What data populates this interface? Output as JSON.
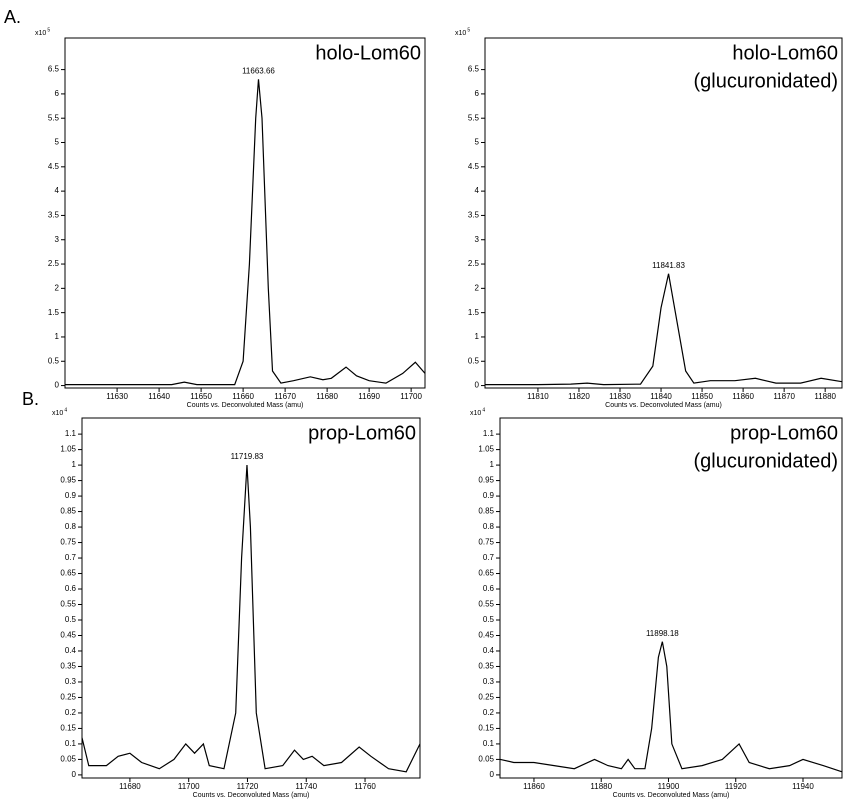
{
  "panel_labels": [
    "A.",
    "B."
  ],
  "chart_data": [
    {
      "type": "line",
      "title": "holo-Lom60",
      "y_multiplier": "x10",
      "y_exponent": "5",
      "xlabel": "Counts vs. Deconvoluted Mass (amu)",
      "color": "#000000",
      "x": [
        11617.6,
        11630,
        11643,
        11646,
        11649,
        11658,
        11660,
        11661.5,
        11663,
        11663.66,
        11664.5,
        11666,
        11667,
        11669,
        11672,
        11676,
        11679,
        11681,
        11684.5,
        11687,
        11690,
        11694,
        11698,
        11701,
        11703.3
      ],
      "values": [
        0.02,
        0.02,
        0.02,
        0.07,
        0.02,
        0.02,
        0.5,
        2.5,
        5.5,
        6.3,
        5.5,
        2,
        0.3,
        0.05,
        0.1,
        0.18,
        0.12,
        0.15,
        0.38,
        0.2,
        0.1,
        0.05,
        0.25,
        0.48,
        0.25
      ],
      "annotations": [
        {
          "label": "11663.66",
          "x": 11663.66,
          "y": 6.3
        }
      ],
      "xlim": [
        11617.6,
        11703.3
      ],
      "ylim": [
        -0.05,
        7.15
      ],
      "xticks": [
        11630,
        11640,
        11650,
        11660,
        11670,
        11680,
        11690,
        11700
      ],
      "yticks": [
        0,
        0.5,
        1,
        1.5,
        2,
        2.5,
        3,
        3.5,
        4,
        4.5,
        5,
        5.5,
        6,
        6.5
      ]
    },
    {
      "type": "line",
      "title": "holo-Lom60",
      "subtitle": "(glucuronidated)",
      "y_multiplier": "x10",
      "y_exponent": "5",
      "xlabel": "Counts vs. Deconvoluted Mass (amu)",
      "color": "#000000",
      "x": [
        11797.1,
        11810,
        11818,
        11822,
        11826,
        11835,
        11838,
        11840,
        11841.83,
        11843.5,
        11846,
        11848,
        11852,
        11858,
        11863,
        11868,
        11874,
        11879,
        11884.1
      ],
      "values": [
        0.02,
        0.02,
        0.03,
        0.05,
        0.02,
        0.03,
        0.4,
        1.6,
        2.3,
        1.5,
        0.3,
        0.05,
        0.1,
        0.1,
        0.15,
        0.05,
        0.05,
        0.15,
        0.08
      ],
      "annotations": [
        {
          "label": "11841.83",
          "x": 11841.83,
          "y": 2.3
        }
      ],
      "xlim": [
        11797.1,
        11884.1
      ],
      "ylim": [
        -0.05,
        7.15
      ],
      "xticks": [
        11810,
        11820,
        11830,
        11840,
        11850,
        11860,
        11870,
        11880
      ],
      "yticks": [
        0,
        0.5,
        1,
        1.5,
        2,
        2.5,
        3,
        3.5,
        4,
        4.5,
        5,
        5.5,
        6,
        6.5
      ]
    },
    {
      "type": "line",
      "title": "prop-Lom60",
      "y_multiplier": "x10",
      "y_exponent": "4",
      "xlabel": "Counts vs. Deconvoluted Mass (amu)",
      "color": "#000000",
      "x": [
        11663.7,
        11666,
        11672,
        11676,
        11680,
        11684,
        11690,
        11695,
        11699,
        11702,
        11705,
        11707,
        11712,
        11716,
        11718,
        11719.83,
        11721,
        11723,
        11726,
        11732,
        11736,
        11739,
        11742,
        11746,
        11752,
        11758,
        11762,
        11768,
        11774,
        11778.7
      ],
      "values": [
        0.12,
        0.03,
        0.03,
        0.06,
        0.07,
        0.04,
        0.02,
        0.05,
        0.1,
        0.07,
        0.1,
        0.03,
        0.02,
        0.2,
        0.7,
        1.0,
        0.8,
        0.2,
        0.02,
        0.03,
        0.08,
        0.05,
        0.06,
        0.03,
        0.04,
        0.09,
        0.06,
        0.02,
        0.01,
        0.1
      ],
      "annotations": [
        {
          "label": "11719.83",
          "x": 11719.83,
          "y": 1.0
        }
      ],
      "xlim": [
        11663.7,
        11778.7
      ],
      "ylim": [
        -0.01,
        1.152
      ],
      "xticks": [
        11680,
        11700,
        11720,
        11740,
        11760
      ],
      "yticks": [
        0,
        0.05,
        0.1,
        0.15,
        0.2,
        0.25,
        0.3,
        0.35,
        0.4,
        0.45,
        0.5,
        0.55,
        0.6,
        0.65,
        0.7,
        0.75,
        0.8,
        0.85,
        0.9,
        0.95,
        1,
        1.05,
        1.1
      ]
    },
    {
      "type": "line",
      "title": "prop-Lom60",
      "subtitle": "(glucuronidated)",
      "y_multiplier": "x10",
      "y_exponent": "4",
      "xlabel": "Counts vs. Deconvoluted Mass (amu)",
      "color": "#000000",
      "x": [
        11850,
        11854,
        11860,
        11866,
        11872,
        11878,
        11882,
        11886,
        11888,
        11890,
        11893,
        11895,
        11897,
        11898.18,
        11899.5,
        11901,
        11904,
        11910,
        11916,
        11921,
        11924,
        11930,
        11936,
        11940,
        11946,
        11951.6
      ],
      "values": [
        0.05,
        0.04,
        0.04,
        0.03,
        0.02,
        0.05,
        0.03,
        0.02,
        0.05,
        0.02,
        0.02,
        0.15,
        0.38,
        0.43,
        0.35,
        0.1,
        0.02,
        0.03,
        0.05,
        0.1,
        0.04,
        0.02,
        0.03,
        0.05,
        0.03,
        0.01
      ],
      "annotations": [
        {
          "label": "11898.18",
          "x": 11898.18,
          "y": 0.43
        }
      ],
      "xlim": [
        11849.9,
        11951.6
      ],
      "ylim": [
        -0.01,
        1.152
      ],
      "xticks": [
        11860,
        11880,
        11900,
        11920,
        11940
      ],
      "yticks": [
        0,
        0.05,
        0.1,
        0.15,
        0.2,
        0.25,
        0.3,
        0.35,
        0.4,
        0.45,
        0.5,
        0.55,
        0.6,
        0.65,
        0.7,
        0.75,
        0.8,
        0.85,
        0.9,
        0.95,
        1,
        1.05,
        1.1
      ]
    }
  ]
}
